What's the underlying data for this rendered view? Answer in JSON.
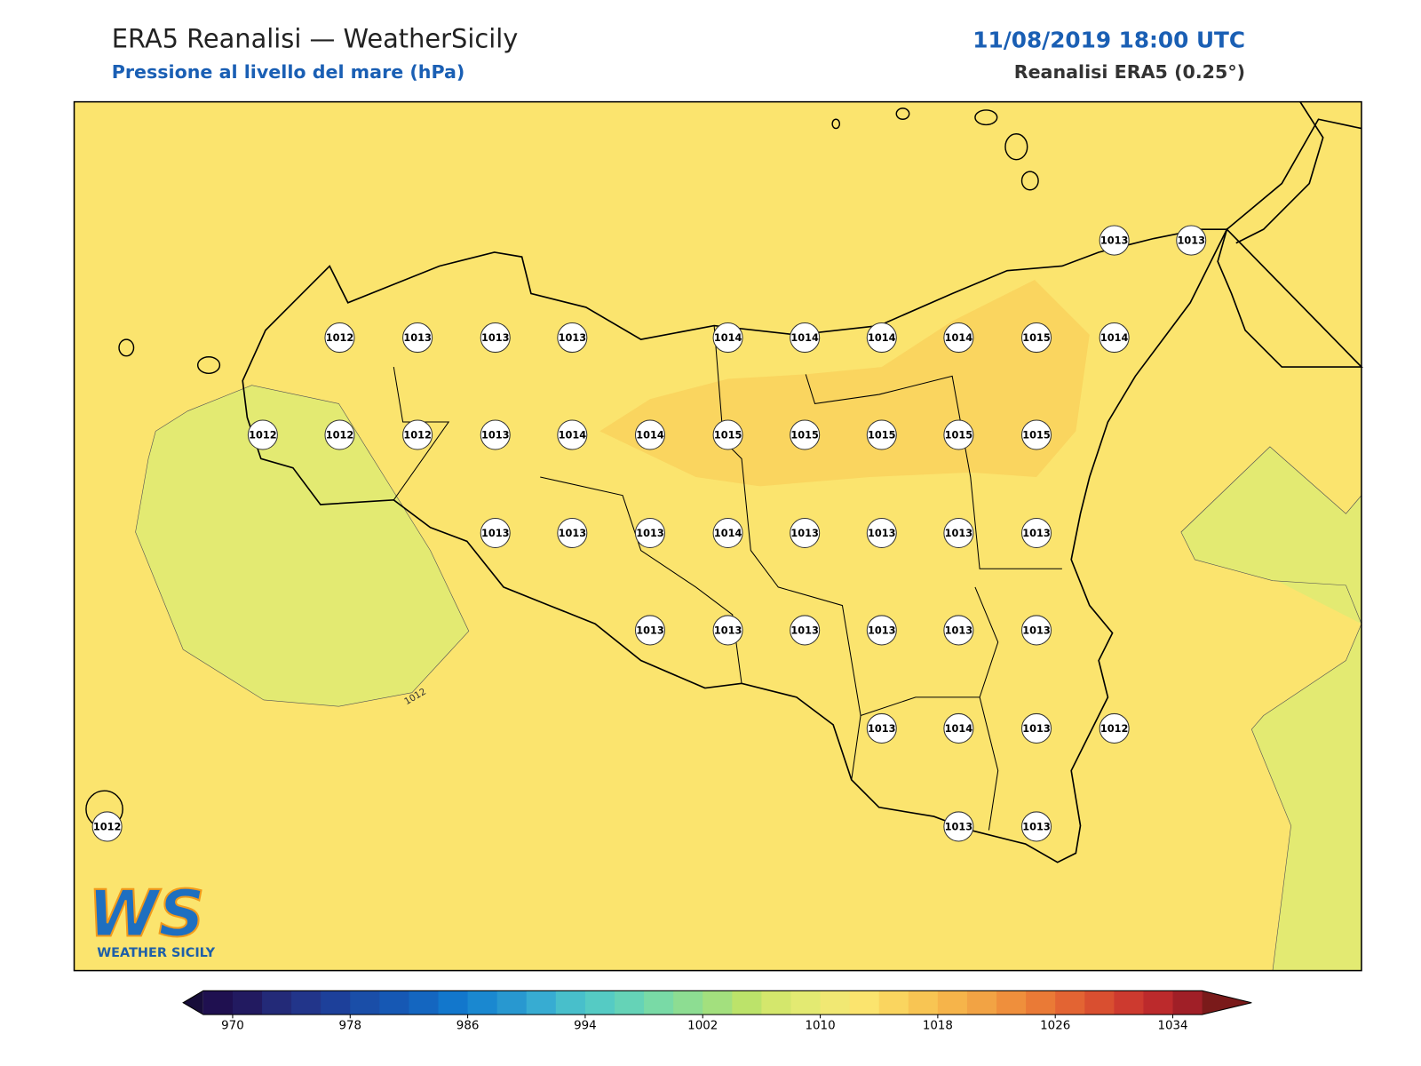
{
  "header": {
    "title": "ERA5 Reanalisi — WeatherSicily",
    "subtitle": "Pressione al livello del mare (hPa)",
    "date": "11/08/2019 18:00 UTC",
    "model": "Reanalisi ERA5 (0.25°)"
  },
  "stations": [
    1013,
    1013,
    1012,
    1013,
    1013,
    1013,
    1014,
    1014,
    1014,
    1014,
    1015,
    1014,
    1012,
    1012,
    1012,
    1013,
    1014,
    1014,
    1015,
    1015,
    1015,
    1015,
    1015,
    1013,
    1013,
    1013,
    1014,
    1013,
    1013,
    1013,
    1013,
    1013,
    1013,
    1013,
    1013,
    1013,
    1013,
    1013,
    1014,
    1013,
    1012,
    1012,
    1013,
    1013
  ],
  "contour_label": "1012",
  "logo": {
    "text": "WS",
    "caption": "WEATHER SICILY"
  },
  "colorbar": {
    "lim": [
      968,
      1036
    ],
    "ticks": [
      970,
      978,
      986,
      994,
      1002,
      1010,
      1018,
      1026,
      1034
    ],
    "under_color": "#170d3a",
    "over_color": "#7a1a1a",
    "colors": [
      "#1f1050",
      "#221a60",
      "#232a78",
      "#22358a",
      "#1d409a",
      "#1a4ea8",
      "#1658b4",
      "#1466c0",
      "#1277cc",
      "#1a88d0",
      "#2898d0",
      "#37acd2",
      "#48bfcb",
      "#55cbc4",
      "#65d3b7",
      "#79daa6",
      "#8ddd92",
      "#a3e07e",
      "#bce36a",
      "#d4e76c",
      "#e3ea72",
      "#f1e873",
      "#fbe46e",
      "#fad55f",
      "#f8c553",
      "#f6b44a",
      "#f2a344",
      "#ef8f3c",
      "#ea7a36",
      "#e36433",
      "#d94f30",
      "#cd3a2f",
      "#bc2a2c",
      "#a01f27"
    ]
  }
}
